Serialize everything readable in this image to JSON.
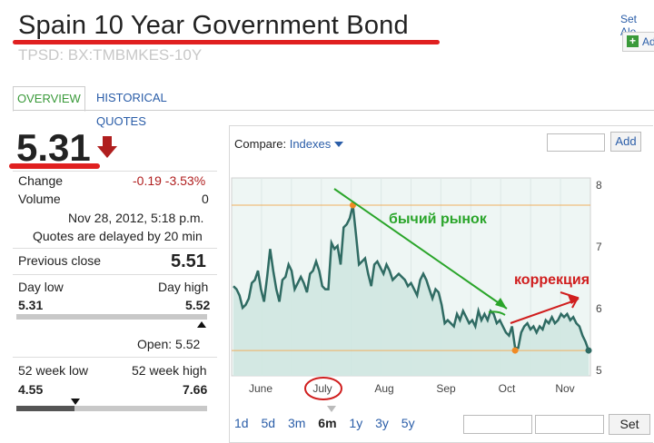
{
  "header": {
    "title": "Spain 10 Year Government Bond",
    "symbol": "TPSD: BX:TMBMKES-10Y",
    "set_alert": "Set Ale",
    "add_label": "Ad"
  },
  "tabs": [
    {
      "label": "OVERVIEW",
      "active": true
    },
    {
      "label": "HISTORICAL QUOTES",
      "active": false
    }
  ],
  "quote": {
    "price": "5.31",
    "direction": "down",
    "change_label": "Change",
    "change_value": "-0.19 -3.53%",
    "volume_label": "Volume",
    "volume_value": "0",
    "timestamp": "Nov 28, 2012, 5:18 p.m.",
    "delay_note": "Quotes are delayed by 20 min",
    "prev_close_label": "Previous close",
    "prev_close_value": "5.51",
    "day_low_label": "Day low",
    "day_high_label": "Day high",
    "day_low_value": "5.31",
    "day_high_value": "5.52",
    "open_text": "Open: 5.52",
    "wk52_low_label": "52 week low",
    "wk52_high_label": "52 week high",
    "wk52_low_value": "4.55",
    "wk52_high_value": "7.66"
  },
  "compare": {
    "label": "Compare:",
    "dropdown": "Indexes",
    "add_label": "Add"
  },
  "ranges": [
    "1d",
    "5d",
    "3m",
    "6m",
    "1y",
    "3y",
    "5y"
  ],
  "selected_range": "6m",
  "set_label": "Set",
  "chart_data": {
    "type": "area",
    "x_ticks": [
      "June",
      "July",
      "Aug",
      "Sep",
      "Oct",
      "Nov"
    ],
    "y_ticks": [
      "5",
      "6",
      "7",
      "8"
    ],
    "ylim": [
      4.9,
      8.1
    ],
    "high": 7.66,
    "low": 5.31,
    "values": [
      6.35,
      6.3,
      6.2,
      6.0,
      6.05,
      6.15,
      6.4,
      6.45,
      6.6,
      6.3,
      6.1,
      6.5,
      6.95,
      6.6,
      6.3,
      6.1,
      6.45,
      6.5,
      6.7,
      6.6,
      6.3,
      6.4,
      6.5,
      6.4,
      6.25,
      6.55,
      6.6,
      6.75,
      6.6,
      6.35,
      6.3,
      6.3,
      7.05,
      6.95,
      7.0,
      6.7,
      7.3,
      7.35,
      7.45,
      7.66,
      7.2,
      6.7,
      6.75,
      6.8,
      6.55,
      6.35,
      6.7,
      6.75,
      6.65,
      6.55,
      6.7,
      6.6,
      6.45,
      6.5,
      6.55,
      6.5,
      6.45,
      6.35,
      6.4,
      6.3,
      6.2,
      6.45,
      6.55,
      6.45,
      6.3,
      6.15,
      6.3,
      6.25,
      6.05,
      5.75,
      5.8,
      5.75,
      5.7,
      5.9,
      5.8,
      5.95,
      5.85,
      5.75,
      5.8,
      5.7,
      5.95,
      5.8,
      5.9,
      5.8,
      5.95,
      5.9,
      5.75,
      5.8,
      5.7,
      5.6,
      5.55,
      5.7,
      5.35,
      5.35,
      5.6,
      5.7,
      5.75,
      5.65,
      5.7,
      5.6,
      5.7,
      5.65,
      5.8,
      5.75,
      5.85,
      5.75,
      5.8,
      5.9,
      5.85,
      5.9,
      5.8,
      5.85,
      5.75,
      5.7,
      5.55,
      5.45,
      5.31
    ],
    "annotations": [
      {
        "text": "бычий рынок",
        "color": "#2aa52a"
      },
      {
        "text": "коррекция",
        "color": "#d01e1e"
      }
    ]
  }
}
